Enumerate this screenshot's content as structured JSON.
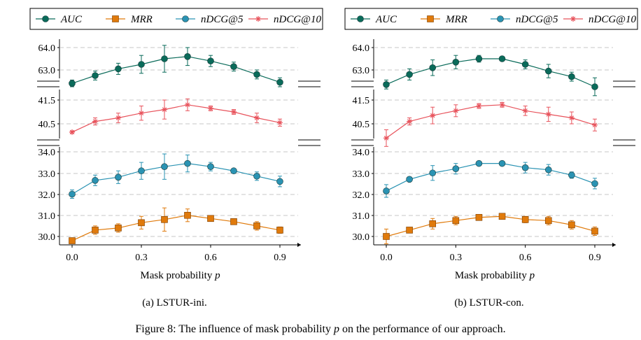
{
  "figure_caption": "Figure 8: The influence of mask probability p on the performance of our approach.",
  "colors": {
    "auc": "#0a6b5a",
    "mrr": "#e07a0b",
    "ndcg5": "#2a93b3",
    "ndcg10": "#e8535c"
  },
  "legend_labels": [
    "AUC",
    "MRR",
    "nDCG@5",
    "nDCG@10"
  ],
  "x_ticks": [
    "0.0",
    "0.3",
    "0.6",
    "0.9"
  ],
  "chart_data": [
    {
      "type": "line",
      "subcaption": "(a) LSTUR-ini.",
      "xlabel": "Mask probability p",
      "x": [
        0.0,
        0.1,
        0.2,
        0.3,
        0.4,
        0.5,
        0.6,
        0.7,
        0.8,
        0.9
      ],
      "panels": [
        {
          "ticks": [
            "63.0",
            "64.0"
          ],
          "ylim": [
            62.3,
            64.3
          ],
          "series": [
            "AUC"
          ]
        },
        {
          "ticks": [
            "40.5",
            "41.5"
          ],
          "ylim": [
            40.0,
            41.8
          ],
          "series": [
            "nDCG@10"
          ]
        },
        {
          "ticks": [
            "30.0",
            "31.0",
            "32.0",
            "33.0",
            "34.0"
          ],
          "ylim": [
            29.7,
            34.1
          ],
          "series": [
            "MRR",
            "nDCG@5"
          ]
        }
      ],
      "series": [
        {
          "name": "AUC",
          "values": [
            62.4,
            62.75,
            63.05,
            63.25,
            63.5,
            63.6,
            63.4,
            63.15,
            62.8,
            62.45
          ],
          "errors": [
            0.15,
            0.2,
            0.25,
            0.4,
            0.6,
            0.4,
            0.25,
            0.2,
            0.2,
            0.2
          ]
        },
        {
          "name": "MRR",
          "values": [
            29.8,
            30.3,
            30.4,
            30.65,
            30.8,
            31.0,
            30.85,
            30.7,
            30.5,
            30.3
          ],
          "errors": [
            0.05,
            0.2,
            0.2,
            0.3,
            0.55,
            0.3,
            0.1,
            0.1,
            0.2,
            0.15
          ]
        },
        {
          "name": "nDCG@5",
          "values": [
            32.0,
            32.65,
            32.8,
            33.1,
            33.3,
            33.45,
            33.3,
            33.1,
            32.85,
            32.6
          ],
          "errors": [
            0.2,
            0.25,
            0.3,
            0.4,
            0.6,
            0.4,
            0.2,
            0.1,
            0.2,
            0.25
          ]
        },
        {
          "name": "nDCG@10",
          "values": [
            40.15,
            40.6,
            40.75,
            40.95,
            41.1,
            41.3,
            41.15,
            41.0,
            40.75,
            40.55
          ],
          "errors": [
            0.05,
            0.15,
            0.2,
            0.3,
            0.4,
            0.25,
            0.1,
            0.1,
            0.2,
            0.15
          ]
        }
      ]
    },
    {
      "type": "line",
      "subcaption": "(b) LSTUR-con.",
      "xlabel": "Mask probability p",
      "x": [
        0.0,
        0.1,
        0.2,
        0.3,
        0.4,
        0.5,
        0.6,
        0.7,
        0.8,
        0.9
      ],
      "panels": [
        {
          "ticks": [
            "63.0",
            "64.0"
          ],
          "ylim": [
            62.3,
            64.3
          ],
          "series": [
            "AUC"
          ]
        },
        {
          "ticks": [
            "40.5",
            "41.5"
          ],
          "ylim": [
            40.0,
            41.8
          ],
          "series": [
            "nDCG@10"
          ]
        },
        {
          "ticks": [
            "30.0",
            "31.0",
            "32.0",
            "33.0",
            "34.0"
          ],
          "ylim": [
            29.7,
            34.1
          ],
          "series": [
            "MRR",
            "nDCG@5"
          ]
        }
      ],
      "series": [
        {
          "name": "AUC",
          "values": [
            62.35,
            62.8,
            63.1,
            63.35,
            63.5,
            63.5,
            63.25,
            62.95,
            62.7,
            62.25
          ],
          "errors": [
            0.2,
            0.25,
            0.35,
            0.3,
            0.15,
            0.05,
            0.2,
            0.3,
            0.2,
            0.4
          ]
        },
        {
          "name": "MRR",
          "values": [
            30.0,
            30.3,
            30.6,
            30.75,
            30.9,
            30.95,
            30.8,
            30.75,
            30.55,
            30.25
          ],
          "errors": [
            0.35,
            0.1,
            0.25,
            0.2,
            0.1,
            0.05,
            0.15,
            0.2,
            0.2,
            0.2
          ]
        },
        {
          "name": "nDCG@5",
          "values": [
            32.15,
            32.7,
            33.0,
            33.2,
            33.45,
            33.45,
            33.25,
            33.15,
            32.9,
            32.5
          ],
          "errors": [
            0.3,
            0.1,
            0.35,
            0.25,
            0.05,
            0.05,
            0.25,
            0.25,
            0.15,
            0.25
          ]
        },
        {
          "name": "nDCG@10",
          "values": [
            39.9,
            40.6,
            40.85,
            41.05,
            41.25,
            41.3,
            41.05,
            40.9,
            40.75,
            40.45
          ],
          "errors": [
            0.35,
            0.15,
            0.35,
            0.25,
            0.1,
            0.1,
            0.2,
            0.3,
            0.25,
            0.25
          ]
        }
      ]
    }
  ]
}
